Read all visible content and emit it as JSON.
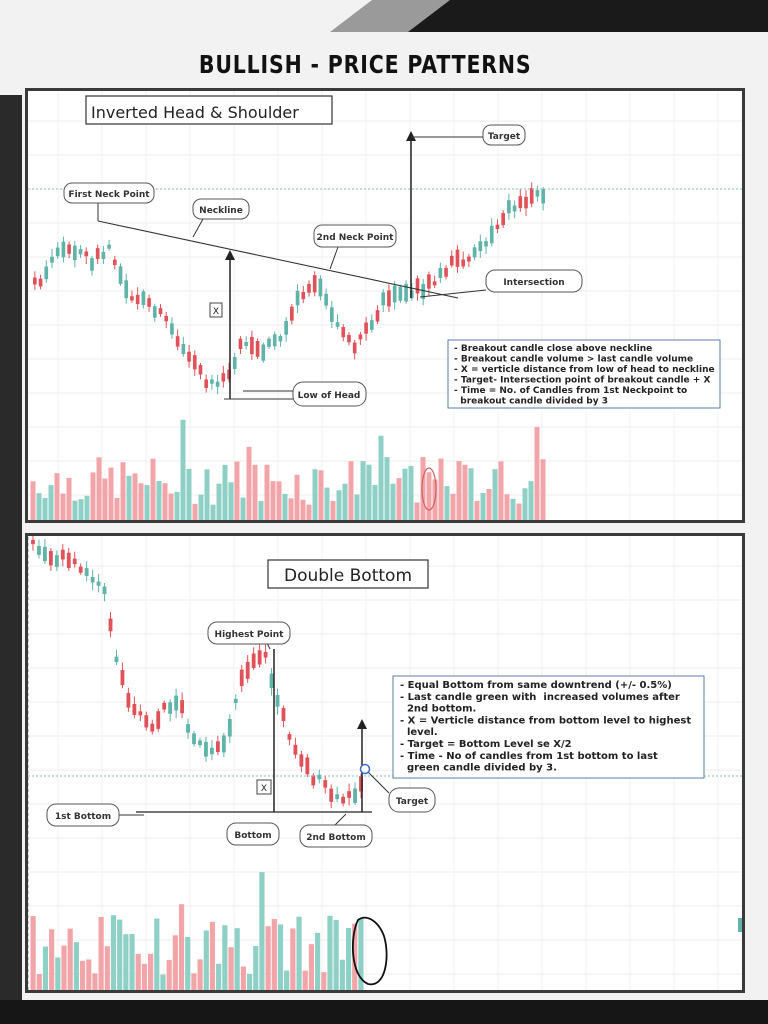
{
  "page_title": "BULLISH - PRICE PATTERNS",
  "colors": {
    "bull": "#5fb3a8",
    "bear": "#e0525a",
    "bull_vol": "#8fd0c6",
    "bear_vol": "#f2a5a8",
    "frame": "#3a3a3a"
  },
  "chart_data": [
    {
      "type": "candlestick",
      "title": "Inverted Head & Shoulder",
      "annotations": {
        "first_neck": "First Neck Point",
        "neckline": "Neckline",
        "second_neck": "2nd Neck Point",
        "target": "Target",
        "intersection": "Intersection",
        "low_of_head": "Low of Head",
        "x_label": "X"
      },
      "notes": [
        "- Breakout candle close above neckline",
        "- Breakout candle volume > last candle volume",
        "- X = verticle distance from low of head to neckline",
        "- Target- Intersection point of breakout candle + X",
        "- Time = No. of Candles from 1st Neckpoint to",
        "  breakout candle divided by 3"
      ]
    },
    {
      "type": "candlestick",
      "title": "Double Bottom",
      "annotations": {
        "highest_point": "Highest Point",
        "first_bottom": "1st Bottom",
        "bottom": "Bottom",
        "second_bottom": "2nd Bottom",
        "target": "Target",
        "x_label": "X"
      },
      "notes": [
        "- Equal Bottom from same downtrend (+/- 0.5%)",
        "- Last candle green with  increased volumes after",
        "  2nd bottom.",
        "- X = Verticle distance from bottom level to highest",
        "  level.",
        "- Target = Bottom Level se X/2",
        "- Time - No of candles from 1st bottom to last",
        "  green candle divided by 3."
      ]
    }
  ]
}
